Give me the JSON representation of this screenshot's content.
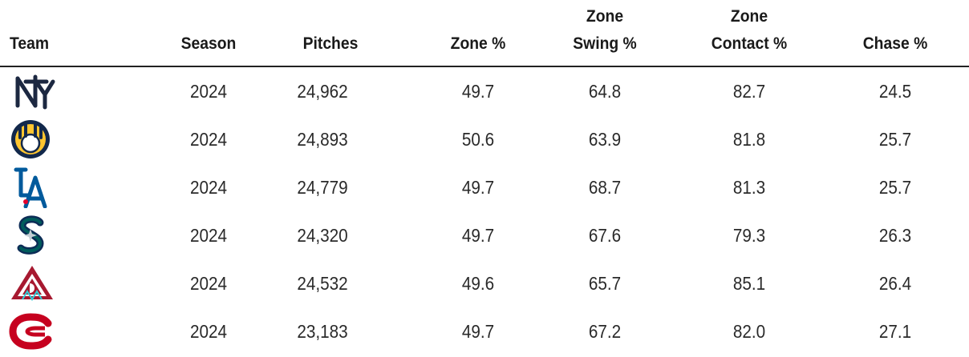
{
  "table": {
    "headers": {
      "team": "Team",
      "season": "Season",
      "pitches": "Pitches",
      "zone_pct": "Zone %",
      "zone_swing_line1": "Zone",
      "zone_swing_line2": "Swing %",
      "zone_contact_line1": "Zone",
      "zone_contact_line2": "Contact %",
      "chase_pct": "Chase %"
    },
    "rows": [
      {
        "logo": "yankees-logo",
        "season": "2024",
        "pitches": "24,962",
        "zone_pct": "49.7",
        "zone_swing": "64.8",
        "zone_contact": "82.7",
        "chase": "24.5"
      },
      {
        "logo": "brewers-logo",
        "season": "2024",
        "pitches": "24,893",
        "zone_pct": "50.6",
        "zone_swing": "63.9",
        "zone_contact": "81.8",
        "chase": "25.7"
      },
      {
        "logo": "dodgers-logo",
        "season": "2024",
        "pitches": "24,779",
        "zone_pct": "49.7",
        "zone_swing": "68.7",
        "zone_contact": "81.3",
        "chase": "25.7"
      },
      {
        "logo": "mariners-logo",
        "season": "2024",
        "pitches": "24,320",
        "zone_pct": "49.7",
        "zone_swing": "67.6",
        "zone_contact": "79.3",
        "chase": "26.3"
      },
      {
        "logo": "diamondbacks-logo",
        "season": "2024",
        "pitches": "24,532",
        "zone_pct": "49.6",
        "zone_swing": "65.7",
        "zone_contact": "85.1",
        "chase": "26.4"
      },
      {
        "logo": "reds-logo",
        "season": "2024",
        "pitches": "23,183",
        "zone_pct": "49.7",
        "zone_swing": "67.2",
        "zone_contact": "82.0",
        "chase": "27.1"
      }
    ]
  },
  "colors": {
    "yankees": "#1c2841",
    "brewers_navy": "#12284b",
    "brewers_gold": "#ffc52f",
    "dodgers": "#005a9c",
    "mariners_teal": "#005c5c",
    "mariners_navy": "#0c2c56",
    "diamondbacks_red": "#a71930",
    "diamondbacks_teal": "#30ced8",
    "reds": "#c6011f"
  }
}
